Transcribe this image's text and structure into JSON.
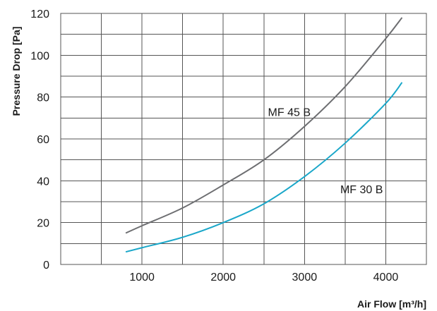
{
  "chart_data": {
    "type": "line",
    "xlabel": "Air Flow [m³/h]",
    "ylabel": "Pressure Drop [Pa]",
    "xlim": [
      0,
      4500
    ],
    "ylim": [
      0,
      120
    ],
    "x_ticks": [
      1000,
      2000,
      3000,
      4000
    ],
    "x_tick_labels": [
      "1000",
      "2000",
      "3000",
      "4000"
    ],
    "y_ticks": [
      0,
      20,
      40,
      60,
      80,
      100,
      120
    ],
    "y_tick_labels": [
      "0",
      "20",
      "40",
      "60",
      "80",
      "100",
      "120"
    ],
    "grid": true,
    "series": [
      {
        "name": "MF 45 B",
        "color": "#6d6e71",
        "x": [
          800,
          1000,
          1500,
          2000,
          2500,
          3000,
          3500,
          4000,
          4200
        ],
        "y": [
          15,
          18.5,
          27,
          38,
          50,
          66,
          85,
          108,
          118
        ]
      },
      {
        "name": "MF 30 B",
        "color": "#1aa7c9",
        "x": [
          800,
          1000,
          1500,
          2000,
          2500,
          3000,
          3500,
          4000,
          4200
        ],
        "y": [
          6,
          8,
          13,
          20,
          29,
          42,
          58,
          77,
          87
        ]
      }
    ]
  }
}
